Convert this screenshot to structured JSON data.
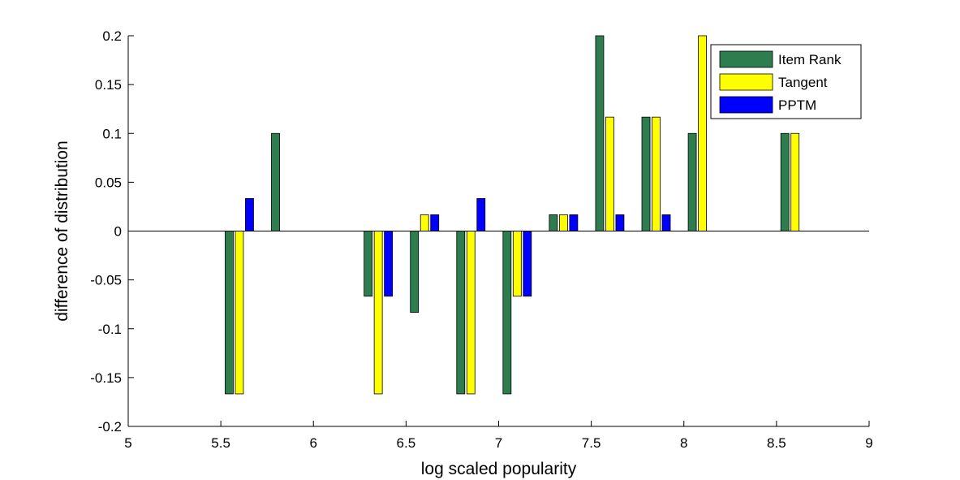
{
  "chart_data": {
    "type": "bar",
    "title": "",
    "xlabel": "log scaled popularity",
    "ylabel": "difference of distribution",
    "xlim": [
      5,
      9
    ],
    "ylim": [
      -0.2,
      0.2
    ],
    "xticks": [
      "5",
      "5.5",
      "6",
      "6.5",
      "7",
      "7.5",
      "8",
      "8.5",
      "9"
    ],
    "yticks": [
      "-0.2",
      "-0.15",
      "-0.1",
      "-0.05",
      "0",
      "0.05",
      "0.1",
      "0.15",
      "0.2"
    ],
    "grid": false,
    "legend_position": "top-right",
    "x": [
      5.6,
      5.85,
      6.35,
      6.6,
      6.85,
      7.1,
      7.35,
      7.6,
      7.85,
      8.1,
      8.6
    ],
    "series": [
      {
        "name": "Item Rank",
        "color": "#2e7d4f",
        "values": [
          -0.1667,
          0.1,
          -0.0667,
          -0.0833,
          -0.1667,
          -0.1667,
          0.0167,
          0.2,
          0.1167,
          0.1,
          0.1
        ]
      },
      {
        "name": "Tangent",
        "color": "#ffff00",
        "values": [
          -0.1667,
          0,
          -0.1667,
          0.0167,
          -0.1667,
          -0.0667,
          0.0167,
          0.1167,
          0.1167,
          0.2,
          0.1
        ]
      },
      {
        "name": "PPTM",
        "color": "#0000ff",
        "values": [
          0.0333,
          0,
          -0.0667,
          0.0167,
          0.0333,
          -0.0667,
          0.0167,
          0.0167,
          0.0167,
          0,
          0
        ]
      }
    ]
  }
}
